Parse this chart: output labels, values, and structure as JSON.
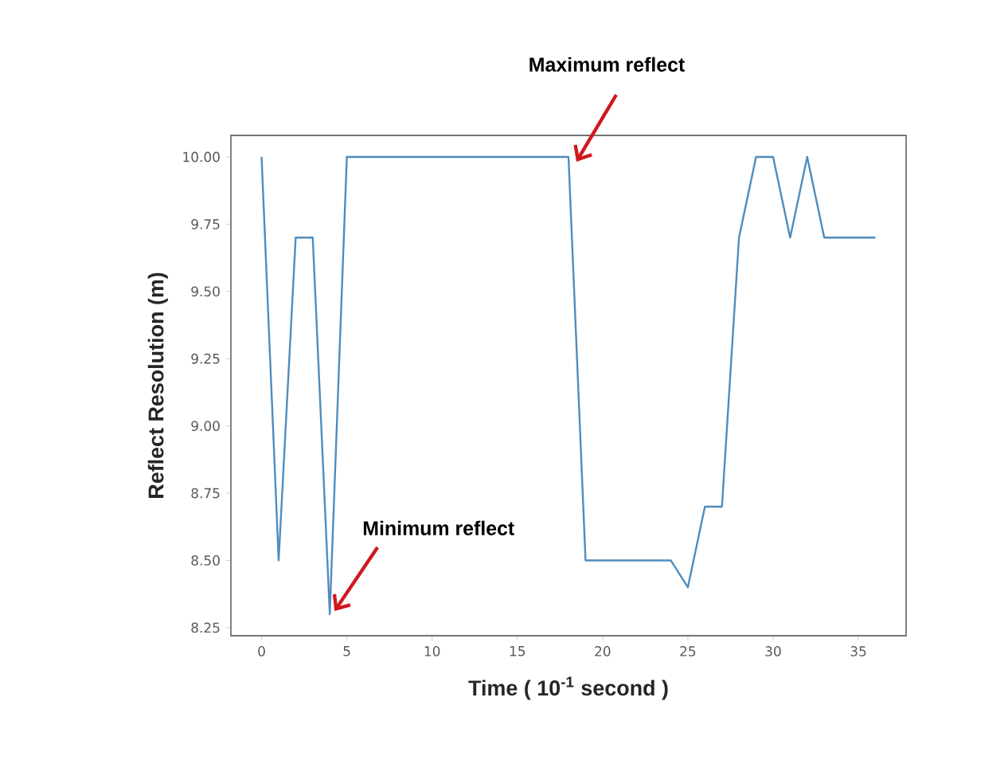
{
  "chart_data": {
    "type": "line",
    "xlabel": "Time ( 10$^{-1}$ second )",
    "ylabel": "Reflect Resolution (m)",
    "x": [
      0,
      1,
      2,
      3,
      4,
      5,
      6,
      7,
      8,
      9,
      10,
      11,
      12,
      13,
      14,
      15,
      16,
      17,
      18,
      19,
      20,
      21,
      22,
      23,
      24,
      25,
      26,
      27,
      28,
      29,
      30,
      31,
      32,
      33,
      34,
      35,
      36
    ],
    "series": [
      {
        "color": "#4f8cbd",
        "values": [
          10,
          8.5,
          9.7,
          9.7,
          8.3,
          10,
          10,
          10,
          10,
          10,
          10,
          10,
          10,
          10,
          10,
          10,
          10,
          10,
          10,
          8.5,
          8.5,
          8.5,
          8.5,
          8.5,
          8.5,
          8.4,
          8.7,
          8.7,
          9.7,
          10,
          10,
          9.7,
          10,
          9.7,
          9.7,
          9.7,
          9.7
        ]
      }
    ],
    "xlim": [
      -1.8,
      37.8
    ],
    "ylim": [
      8.22,
      10.08
    ],
    "xticks": [
      0,
      5,
      10,
      15,
      20,
      25,
      30,
      35
    ],
    "yticks": [
      {
        "value": 8.25,
        "label": "8.25"
      },
      {
        "value": 8.5,
        "label": "8.50"
      },
      {
        "value": 8.75,
        "label": "8.75"
      },
      {
        "value": 9.0,
        "label": "9.00"
      },
      {
        "value": 9.25,
        "label": "9.25"
      },
      {
        "value": 9.5,
        "label": "9.50"
      },
      {
        "value": 9.75,
        "label": "9.75"
      },
      {
        "value": 10.0,
        "label": "10.00"
      }
    ],
    "grid": false,
    "annotations": [
      {
        "text": "Maximum reflect",
        "x": 18,
        "y": 10
      },
      {
        "text": "Minimum reflect",
        "x": 4,
        "y": 8.3
      }
    ]
  }
}
